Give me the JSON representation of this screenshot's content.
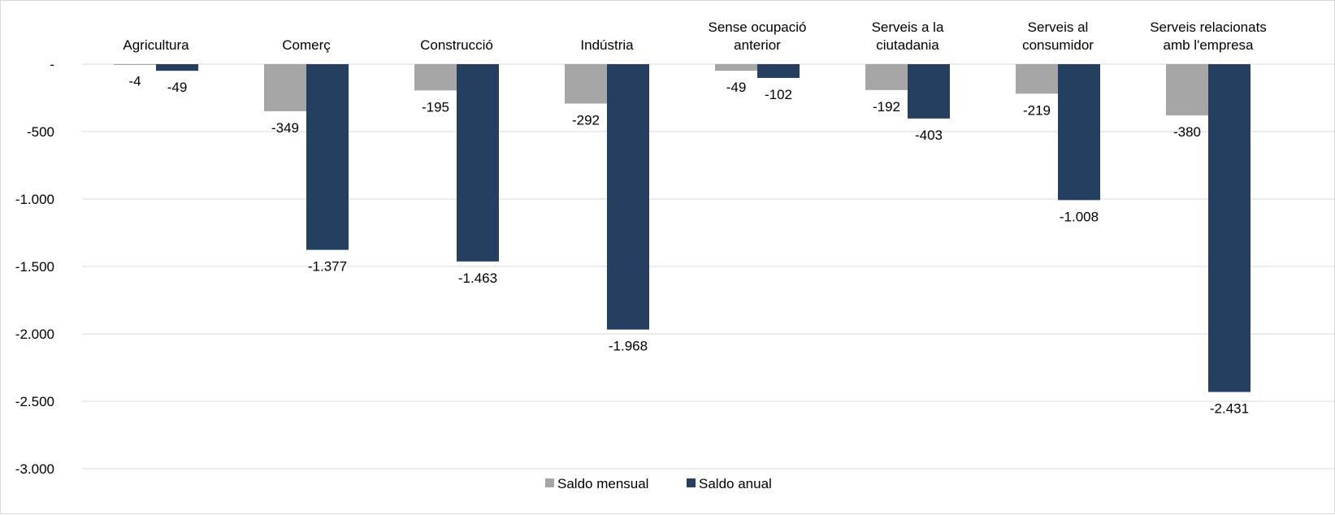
{
  "chart_data": {
    "type": "bar",
    "title": "",
    "xlabel": "",
    "ylabel": "",
    "ylim": [
      -3000,
      0
    ],
    "yticks": [
      0,
      -500,
      -1000,
      -1500,
      -2000,
      -2500,
      -3000
    ],
    "ytick_labels": [
      "-",
      "-500",
      "-1.000",
      "-1.500",
      "-2.000",
      "-2.500",
      "-3.000"
    ],
    "grid": true,
    "legend_position": "bottom",
    "x_axis_position": "top",
    "categories": [
      [
        "Agricultura"
      ],
      [
        "Comerç"
      ],
      [
        "Construcció"
      ],
      [
        "Indústria"
      ],
      [
        "Sense ocupació",
        "anterior"
      ],
      [
        "Serveis a la",
        "ciutadania"
      ],
      [
        "Serveis al",
        "consumidor"
      ],
      [
        "Serveis relacionats",
        "amb l'empresa"
      ]
    ],
    "series": [
      {
        "name": "Saldo mensual",
        "color": "#a6a6a6",
        "values": [
          -4,
          -349,
          -195,
          -292,
          -49,
          -192,
          -219,
          -380
        ],
        "value_labels": [
          "-4",
          "-349",
          "-195",
          "-292",
          "-49",
          "-192",
          "-219",
          "-380"
        ]
      },
      {
        "name": "Saldo anual",
        "color": "#243f60",
        "values": [
          -49,
          -1377,
          -1463,
          -1968,
          -102,
          -403,
          -1008,
          -2431
        ],
        "value_labels": [
          "-49",
          "-1.377",
          "-1.463",
          "-1.968",
          "-102",
          "-403",
          "-1.008",
          "-2.431"
        ]
      }
    ]
  }
}
